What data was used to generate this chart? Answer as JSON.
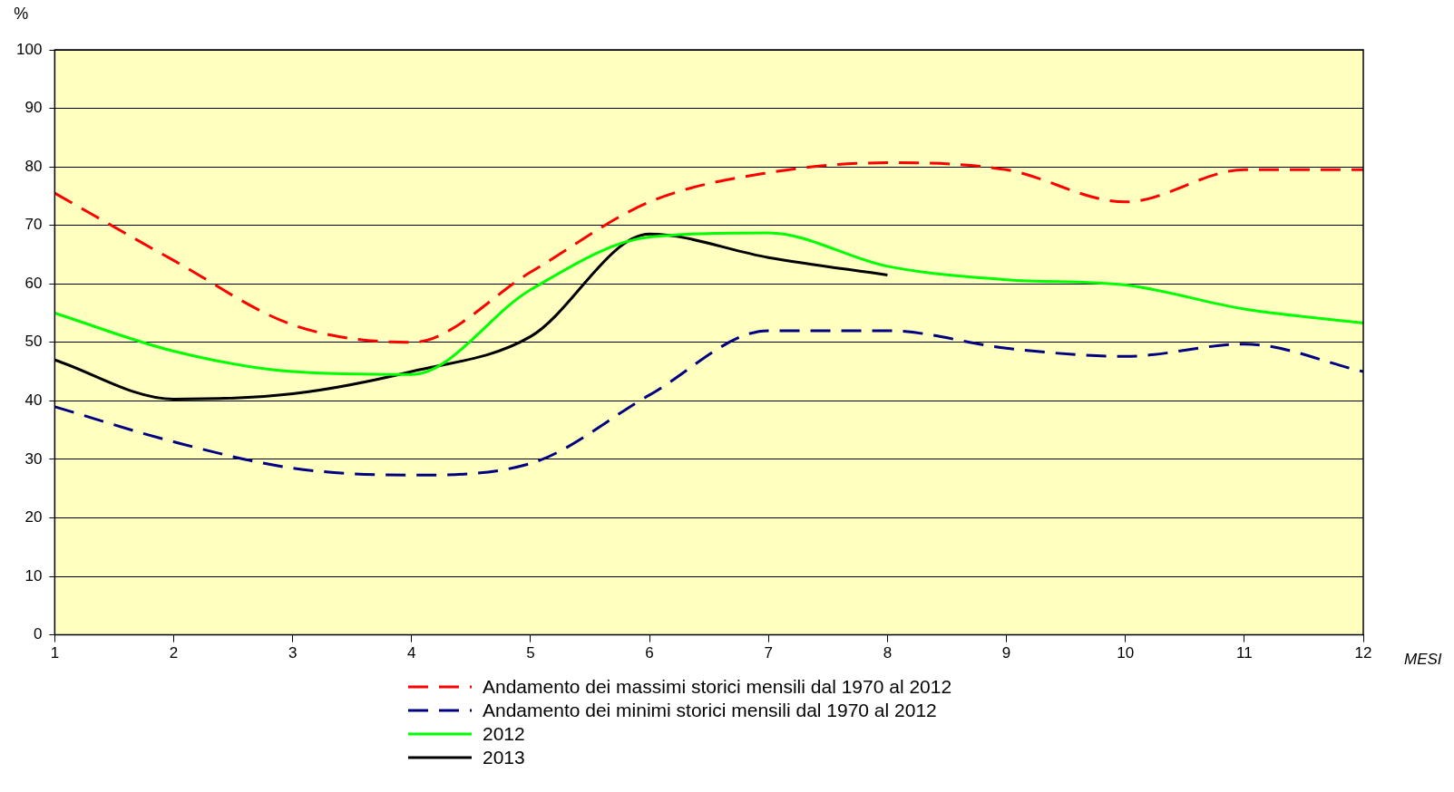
{
  "chart_data": {
    "type": "line",
    "xlabel": "MESI",
    "ylabel": "%",
    "x": [
      1,
      2,
      3,
      4,
      5,
      6,
      7,
      8,
      9,
      10,
      11,
      12
    ],
    "xlim": [
      1,
      12
    ],
    "xticks": [
      1,
      2,
      3,
      4,
      5,
      6,
      7,
      8,
      9,
      10,
      11,
      12
    ],
    "ylim": [
      0,
      100
    ],
    "yticks": [
      0,
      10,
      20,
      30,
      40,
      50,
      60,
      70,
      80,
      90,
      100
    ],
    "grid": "y",
    "legend": "bottom",
    "marker": "none",
    "series": [
      {
        "name": "Andamento dei massimi storici mensili dal 1970 al 2012",
        "color": "#ff0000",
        "line_style": "dashed",
        "values": [
          75.5,
          64,
          53,
          50,
          62,
          74,
          79,
          80.7,
          79.5,
          74,
          79.5,
          79.5
        ]
      },
      {
        "name": "Andamento dei minimi storici mensili dal 1970 al 2012",
        "color": "#000080",
        "line_style": "dashed",
        "values": [
          39,
          33,
          28.5,
          27.3,
          29.3,
          41,
          52,
          52,
          49,
          47.6,
          49.7,
          45
        ]
      },
      {
        "name": "2012",
        "color": "#00ff00",
        "line_style": "solid",
        "values": [
          55,
          48.5,
          45,
          44.5,
          59,
          68,
          68.7,
          63,
          60.7,
          59.8,
          55.7,
          53.3
        ]
      },
      {
        "name": "2013",
        "color": "#000000",
        "line_style": "solid",
        "values": [
          47,
          40.3,
          41.2,
          45,
          51,
          68.5,
          64.5,
          61.5,
          null,
          null,
          null,
          null
        ]
      }
    ]
  }
}
